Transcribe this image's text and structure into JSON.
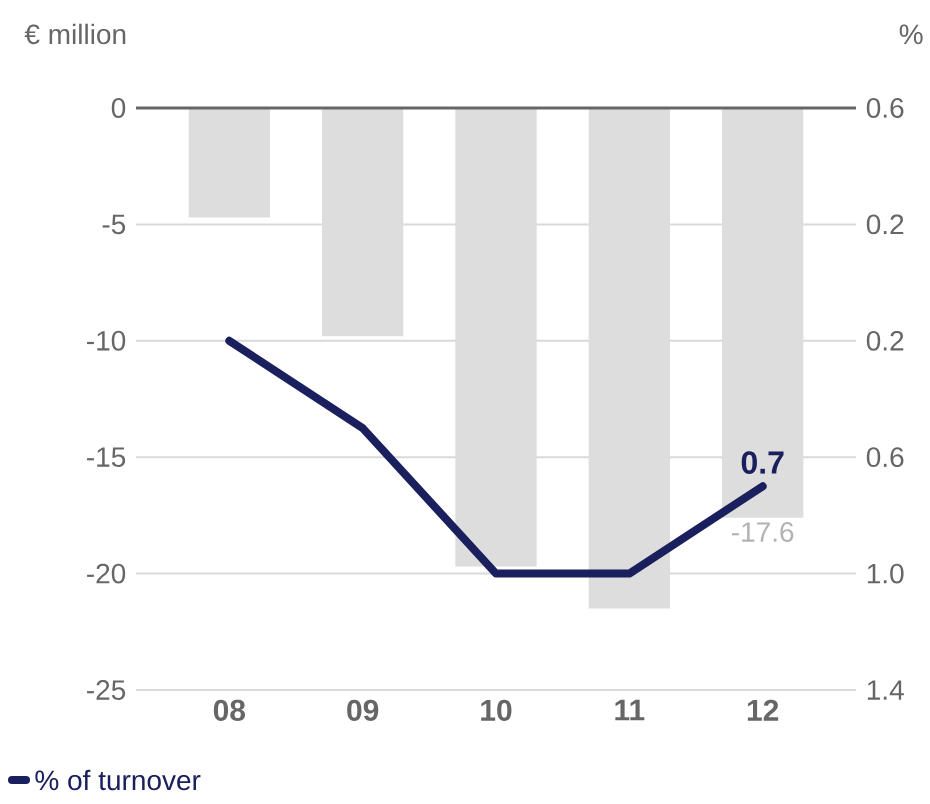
{
  "chart_data": {
    "type": "bar",
    "ylabel": "€ million",
    "y2label": "%",
    "categories": [
      "08",
      "09",
      "10",
      "11",
      "12"
    ],
    "series": [
      {
        "color": "#dddddd",
        "values": [
          -4.7,
          -9.8,
          -19.7,
          -21.5,
          -17.6
        ],
        "value_labels": [
          null,
          null,
          null,
          null,
          "-17.6"
        ]
      },
      {
        "type": "line",
        "name": "% of turnover",
        "axis": "y2",
        "color": "#1a1f5e",
        "values": [
          0.2,
          0.5,
          1.0,
          1.0,
          0.7
        ],
        "value_labels": [
          null,
          null,
          null,
          null,
          "0.7"
        ]
      }
    ],
    "ylim": [
      -25,
      0
    ],
    "yticks": [
      0,
      -5,
      -10,
      -15,
      -20,
      -25
    ],
    "y2lim": [
      1.4,
      -0.6
    ],
    "y2ticks": [
      {
        "value": -0.6,
        "label": "0.6"
      },
      {
        "value": -0.2,
        "label": "0.2"
      },
      0.2,
      0.6,
      {
        "value": 1.0,
        "label": "1.0"
      },
      1.4
    ],
    "grid": "y",
    "legend": "bottom left"
  }
}
